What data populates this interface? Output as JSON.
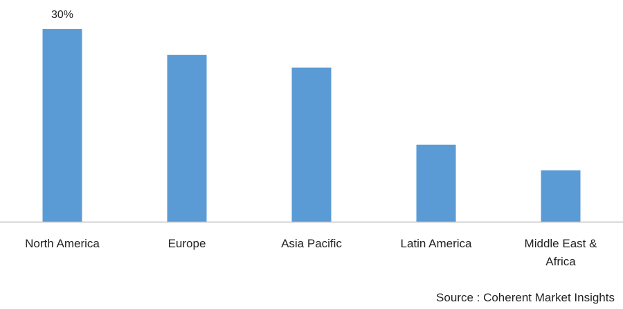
{
  "colors": {
    "bar": "#5b9bd5",
    "axis": "#bfbfbf",
    "text": "#222222"
  },
  "chart_data": {
    "type": "bar",
    "title": "",
    "xlabel": "",
    "ylabel": "",
    "categories": [
      [
        "North America"
      ],
      [
        "Europe"
      ],
      [
        "Asia Pacific"
      ],
      [
        "Latin America"
      ],
      [
        "Middle East &",
        "Africa"
      ]
    ],
    "values": [
      30,
      26,
      24,
      12,
      8
    ],
    "data_labels": [
      "30%",
      "",
      "",
      "",
      ""
    ],
    "ylim": [
      0,
      30
    ],
    "grid": false,
    "legend": "none"
  },
  "source": "Source : Coherent Market Insights"
}
